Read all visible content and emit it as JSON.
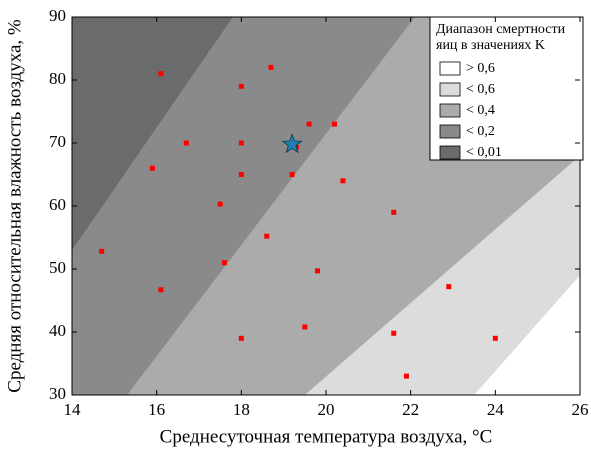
{
  "chart_data": {
    "type": "contour-scatter",
    "xlabel": "Среднесуточная температура воздуха, °C",
    "ylabel": "Средняя относительная влажность воздуха, %",
    "xlim": [
      14,
      26
    ],
    "xticks": [
      14,
      16,
      18,
      20,
      22,
      24,
      26
    ],
    "ylim": [
      30,
      90
    ],
    "yticks": [
      30,
      40,
      50,
      60,
      70,
      80,
      90
    ],
    "legend_title": [
      "Диапазон смертности",
      "яиц в значениях K"
    ],
    "legend_position": "upper right",
    "levels": [
      {
        "name": "> 0,6",
        "color": "#ffffff",
        "boundary": null
      },
      {
        "name": "< 0,6",
        "color": "#dcdcdc",
        "boundary": [
          [
            23.5,
            30
          ],
          [
            26,
            49
          ]
        ]
      },
      {
        "name": "< 0,4",
        "color": "#ababab",
        "boundary": [
          [
            19.5,
            30
          ],
          [
            26,
            68
          ]
        ]
      },
      {
        "name": "< 0,2",
        "color": "#8a8a8a",
        "boundary": [
          [
            15.3,
            30
          ],
          [
            22.1,
            90
          ]
        ]
      },
      {
        "name": "< 0,01",
        "color": "#6b6b6b",
        "boundary": [
          [
            14,
            53
          ],
          [
            17.8,
            90
          ]
        ]
      }
    ],
    "points": {
      "color": "#ff0000",
      "x": [
        16.1,
        18.7,
        18,
        16.7,
        18,
        19.6,
        20.2,
        15.9,
        18,
        19.2,
        20.4,
        17.5,
        21.6,
        18.6,
        14.7,
        17.6,
        19.8,
        22.9,
        16.1,
        19.5,
        21.6,
        18,
        24,
        21.9,
        19.3
      ],
      "y": [
        81,
        82,
        79,
        70,
        70,
        73,
        73,
        66,
        65,
        65,
        64,
        60.3,
        59,
        55.2,
        52.8,
        51,
        49.7,
        47.2,
        46.7,
        40.8,
        39.8,
        39,
        39,
        33,
        69.3
      ]
    },
    "star": {
      "x": 19.2,
      "y": 69.8,
      "color": "#1f7fae"
    }
  }
}
